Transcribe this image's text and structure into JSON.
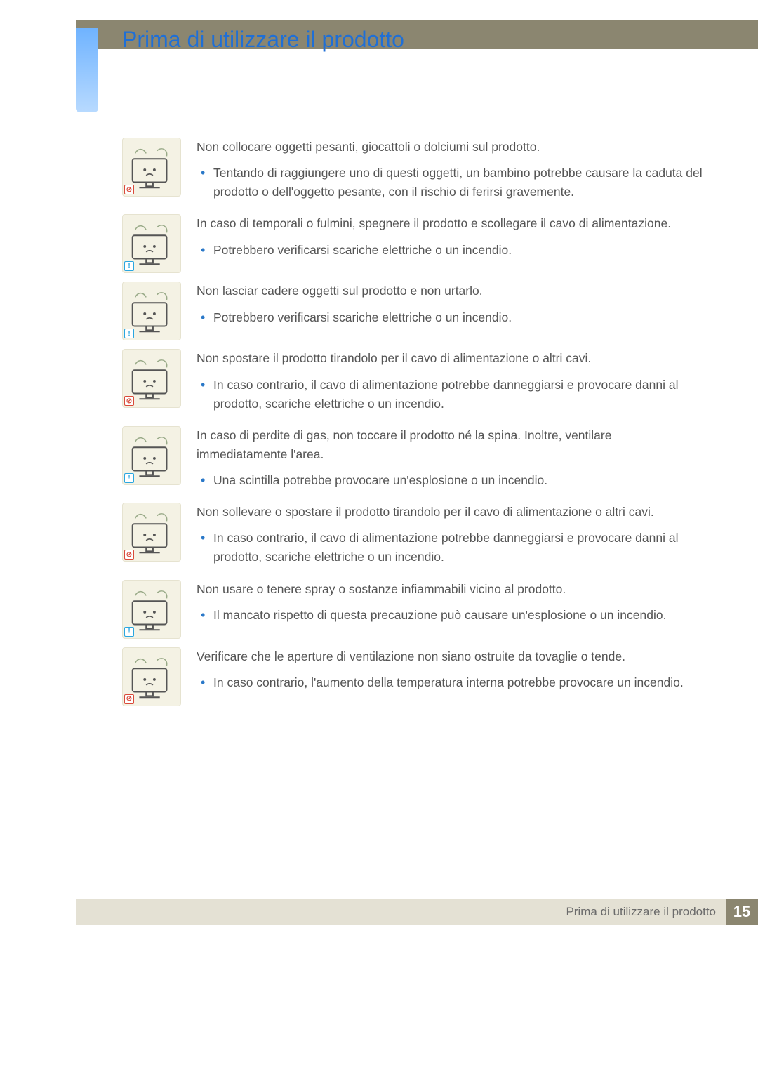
{
  "colors": {
    "header_bar": "#8b8670",
    "title_text": "#1f6fd6",
    "side_gradient_top": "#6fb3ff",
    "side_gradient_bottom": "#b8daff",
    "body_text": "#555555",
    "bullet": "#2a78c8",
    "icon_bg": "#f4f2e4",
    "footer_bar": "#e4e1d4",
    "footer_num_bg": "#8b8670",
    "footer_num_text": "#ffffff",
    "info_badge": "#2aa6e0",
    "prohibit_badge": "#d94a3a"
  },
  "typography": {
    "title_fontsize_pt": 24,
    "body_fontsize_pt": 13,
    "footer_num_fontsize_pt": 17
  },
  "title": "Prima di utilizzare il prodotto",
  "footer": {
    "label": "Prima di utilizzare il prodotto",
    "page_number": "15"
  },
  "warnings": [
    {
      "icon_type": "prohibit",
      "icon_name": "children-toys-on-monitor-icon",
      "lead": "Non collocare oggetti pesanti, giocattoli o dolciumi sul prodotto.",
      "bullets": [
        "Tentando di raggiungere uno di questi oggetti, un bambino potrebbe causare la caduta del prodotto o dell'oggetto pesante, con il rischio di ferirsi gravemente."
      ]
    },
    {
      "icon_type": "info",
      "icon_name": "lightning-unplug-icon",
      "lead": "In caso di temporali o fulmini, spegnere il prodotto e scollegare il cavo di alimentazione.",
      "bullets": [
        "Potrebbero verificarsi scariche elettriche o un incendio."
      ]
    },
    {
      "icon_type": "info",
      "icon_name": "falling-object-icon",
      "lead": "Non lasciar cadere oggetti sul prodotto e non urtarlo.",
      "bullets": [
        "Potrebbero verificarsi scariche elettriche o un incendio."
      ]
    },
    {
      "icon_type": "prohibit",
      "icon_name": "pull-by-cable-icon",
      "lead": "Non spostare il prodotto tirandolo per il cavo di alimentazione o altri cavi.",
      "bullets": [
        "In caso contrario, il cavo di alimentazione potrebbe danneggiarsi e provocare danni al prodotto, scariche elettriche o un incendio."
      ]
    },
    {
      "icon_type": "info",
      "icon_name": "gas-leak-ventilate-icon",
      "lead": "In caso di perdite di gas, non toccare il prodotto né la spina. Inoltre, ventilare immediatamente l'area.",
      "bullets": [
        "Una scintilla potrebbe provocare un'esplosione o un incendio."
      ]
    },
    {
      "icon_type": "prohibit",
      "icon_name": "lift-by-cable-icon",
      "lead": "Non sollevare o spostare il prodotto tirandolo per il cavo di alimentazione o altri cavi.",
      "bullets": [
        "In caso contrario, il cavo di alimentazione potrebbe danneggiarsi e provocare danni al prodotto, scariche elettriche o un incendio."
      ]
    },
    {
      "icon_type": "info",
      "icon_name": "flammable-spray-icon",
      "lead": "Non usare o tenere spray o sostanze infiammabili vicino al prodotto.",
      "bullets": [
        "Il mancato rispetto di questa precauzione può causare un'esplosione o un incendio."
      ]
    },
    {
      "icon_type": "prohibit",
      "icon_name": "blocked-vents-icon",
      "lead": "Verificare che le aperture di ventilazione non siano ostruite da tovaglie o tende.",
      "bullets": [
        "In caso contrario, l'aumento della temperatura interna potrebbe provocare un incendio."
      ]
    }
  ]
}
